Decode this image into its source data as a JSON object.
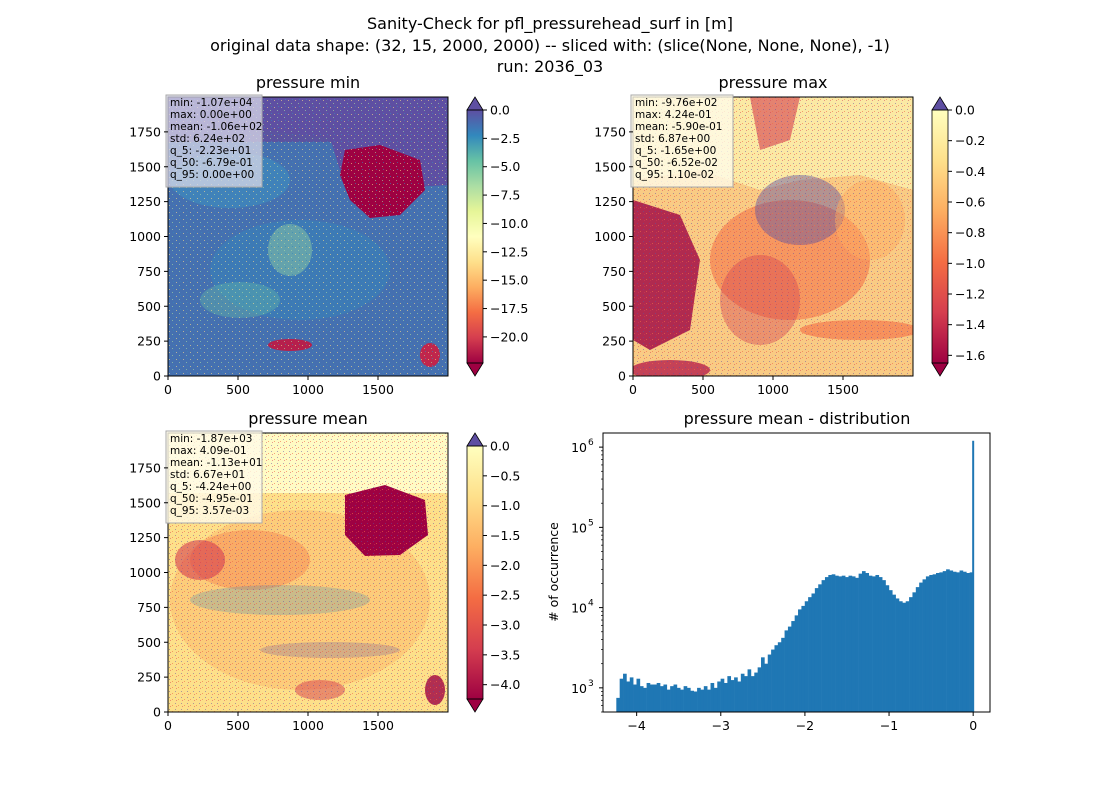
{
  "figure": {
    "suptitle": [
      "Sanity-Check for pfl_pressurehead_surf in [m]",
      "original data shape: (32, 15, 2000, 2000) -- sliced with: (slice(None, None, None), -1)",
      "run: 2036_03"
    ]
  },
  "panels": [
    {
      "title": "pressure min",
      "cmap": "Spectral",
      "colorbar": {
        "min": -22.3,
        "max": 0.0,
        "ticks": [
          0.0,
          -2.5,
          -5.0,
          -7.5,
          -10.0,
          -12.5,
          -15.0,
          -17.5,
          -20.0
        ],
        "tick_labels": [
          "0.0",
          "−2.5",
          "−5.0",
          "−7.5",
          "−10.0",
          "−12.5",
          "−15.0",
          "−17.5",
          "−20.0"
        ],
        "extend": "both",
        "under_color": "#5e4fa2",
        "over_color": "#5e4fa2"
      },
      "stats": [
        "min: -1.07e+04",
        "max: 0.00e+00",
        "mean: -1.06e+02",
        "std: 6.24e+02",
        "q_5: -2.23e+01",
        "q_50: -6.79e-01",
        "q_95: 0.00e+00"
      ]
    },
    {
      "title": "pressure max",
      "cmap": "Spectral",
      "colorbar": {
        "min": -1.65,
        "max": 0.0,
        "ticks": [
          0.0,
          -0.2,
          -0.4,
          -0.6,
          -0.8,
          -1.0,
          -1.2,
          -1.4,
          -1.6
        ],
        "tick_labels": [
          "0.0",
          "−0.2",
          "−0.4",
          "−0.6",
          "−0.8",
          "−1.0",
          "−1.2",
          "−1.4",
          "−1.6"
        ],
        "extend": "both"
      },
      "stats": [
        "min: -9.76e+02",
        "max: 4.24e-01",
        "mean: -5.90e-01",
        "std: 6.87e+00",
        "q_5: -1.65e+00",
        "q_50: -6.52e-02",
        "q_95: 1.10e-02"
      ]
    },
    {
      "title": "pressure mean",
      "cmap": "Spectral",
      "colorbar": {
        "min": -4.24,
        "max": 0.0,
        "ticks": [
          0.0,
          -0.5,
          -1.0,
          -1.5,
          -2.0,
          -2.5,
          -3.0,
          -3.5,
          -4.0
        ],
        "tick_labels": [
          "0.0",
          "−0.5",
          "−1.0",
          "−1.5",
          "−2.0",
          "−2.5",
          "−3.0",
          "−3.5",
          "−4.0"
        ],
        "extend": "both"
      },
      "stats": [
        "min: -1.87e+03",
        "max: 4.09e-01",
        "mean: -1.13e+01",
        "std: 6.67e+01",
        "q_5: -4.24e+00",
        "q_50: -4.95e-01",
        "q_95: 3.57e-03"
      ]
    }
  ],
  "map_axes": {
    "x_ticks": [
      0,
      500,
      1000,
      1500
    ],
    "x_tick_labels": [
      "0",
      "500",
      "1000",
      "1500"
    ],
    "y_ticks": [
      0,
      250,
      500,
      750,
      1000,
      1250,
      1500,
      1750
    ],
    "y_tick_labels": [
      "0",
      "250",
      "500",
      "750",
      "1000",
      "1250",
      "1500",
      "1750"
    ],
    "xlim": [
      0,
      2000
    ],
    "ylim": [
      0,
      2000
    ]
  },
  "chart_data": {
    "type": "bar",
    "title": "pressure mean - distribution",
    "xlabel": "",
    "ylabel": "# of occurrence",
    "yscale": "log",
    "xlim": [
      -4.4,
      0.2
    ],
    "ylim": [
      500,
      1500000
    ],
    "x_ticks": [
      -4,
      -3,
      -2,
      -1,
      0
    ],
    "x_tick_labels": [
      "−4",
      "−3",
      "−2",
      "−1",
      "0"
    ],
    "y_ticks": [
      1000,
      10000,
      100000,
      1000000
    ],
    "y_tick_labels": [
      "10",
      "10",
      "10",
      "10"
    ],
    "y_tick_exponents": [
      "3",
      "4",
      "5",
      "6"
    ],
    "color": "#1f77b4",
    "points": [
      [
        -4.22,
        750
      ],
      [
        -4.18,
        1300
      ],
      [
        -4.14,
        1500
      ],
      [
        -4.1,
        1200
      ],
      [
        -4.06,
        1350
      ],
      [
        -4.02,
        1100
      ],
      [
        -3.98,
        1300
      ],
      [
        -3.94,
        1050
      ],
      [
        -3.9,
        1000
      ],
      [
        -3.86,
        1150
      ],
      [
        -3.82,
        1100
      ],
      [
        -3.78,
        1100
      ],
      [
        -3.74,
        1150
      ],
      [
        -3.7,
        1050
      ],
      [
        -3.66,
        1100
      ],
      [
        -3.62,
        950
      ],
      [
        -3.58,
        1050
      ],
      [
        -3.54,
        1100
      ],
      [
        -3.5,
        1000
      ],
      [
        -3.46,
        950
      ],
      [
        -3.42,
        1050
      ],
      [
        -3.38,
        1000
      ],
      [
        -3.34,
        920
      ],
      [
        -3.3,
        900
      ],
      [
        -3.26,
        1000
      ],
      [
        -3.22,
        950
      ],
      [
        -3.18,
        1050
      ],
      [
        -3.14,
        950
      ],
      [
        -3.1,
        1150
      ],
      [
        -3.06,
        1000
      ],
      [
        -3.02,
        1200
      ],
      [
        -2.98,
        1300
      ],
      [
        -2.94,
        1150
      ],
      [
        -2.9,
        1400
      ],
      [
        -2.86,
        1250
      ],
      [
        -2.82,
        1350
      ],
      [
        -2.78,
        1200
      ],
      [
        -2.74,
        1500
      ],
      [
        -2.7,
        1400
      ],
      [
        -2.66,
        1700
      ],
      [
        -2.62,
        1400
      ],
      [
        -2.58,
        1550
      ],
      [
        -2.54,
        1800
      ],
      [
        -2.5,
        2400
      ],
      [
        -2.46,
        2000
      ],
      [
        -2.42,
        2600
      ],
      [
        -2.38,
        3000
      ],
      [
        -2.34,
        3400
      ],
      [
        -2.3,
        3700
      ],
      [
        -2.26,
        4200
      ],
      [
        -2.22,
        5200
      ],
      [
        -2.18,
        5800
      ],
      [
        -2.14,
        6800
      ],
      [
        -2.1,
        8000
      ],
      [
        -2.06,
        9500
      ],
      [
        -2.02,
        10500
      ],
      [
        -1.98,
        12000
      ],
      [
        -1.94,
        13500
      ],
      [
        -1.9,
        15000
      ],
      [
        -1.86,
        17500
      ],
      [
        -1.82,
        19500
      ],
      [
        -1.78,
        22000
      ],
      [
        -1.74,
        24000
      ],
      [
        -1.7,
        25500
      ],
      [
        -1.66,
        26000
      ],
      [
        -1.62,
        25000
      ],
      [
        -1.58,
        24500
      ],
      [
        -1.54,
        25000
      ],
      [
        -1.5,
        24000
      ],
      [
        -1.46,
        25000
      ],
      [
        -1.42,
        24500
      ],
      [
        -1.38,
        23500
      ],
      [
        -1.34,
        26500
      ],
      [
        -1.3,
        28500
      ],
      [
        -1.26,
        27000
      ],
      [
        -1.22,
        25000
      ],
      [
        -1.18,
        24500
      ],
      [
        -1.14,
        25500
      ],
      [
        -1.1,
        24000
      ],
      [
        -1.06,
        22000
      ],
      [
        -1.02,
        19000
      ],
      [
        -0.98,
        16500
      ],
      [
        -0.94,
        14500
      ],
      [
        -0.9,
        13000
      ],
      [
        -0.86,
        12000
      ],
      [
        -0.82,
        11500
      ],
      [
        -0.78,
        12000
      ],
      [
        -0.74,
        13500
      ],
      [
        -0.7,
        15500
      ],
      [
        -0.66,
        18000
      ],
      [
        -0.62,
        20500
      ],
      [
        -0.58,
        22500
      ],
      [
        -0.54,
        24500
      ],
      [
        -0.5,
        25500
      ],
      [
        -0.46,
        26000
      ],
      [
        -0.42,
        27000
      ],
      [
        -0.38,
        27500
      ],
      [
        -0.34,
        28500
      ],
      [
        -0.3,
        30000
      ],
      [
        -0.26,
        29000
      ],
      [
        -0.22,
        28000
      ],
      [
        -0.18,
        27500
      ],
      [
        -0.14,
        29000
      ],
      [
        -0.1,
        28000
      ],
      [
        -0.06,
        27000
      ],
      [
        -0.02,
        27500
      ],
      [
        0.0,
        1200000
      ]
    ]
  }
}
